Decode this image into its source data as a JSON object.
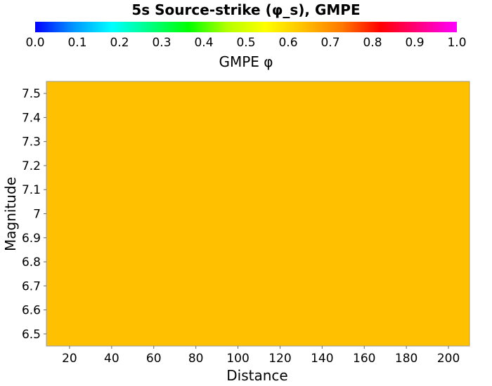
{
  "chart_data": {
    "type": "heatmap",
    "title": "5s Source-strike (φ_s), GMPE",
    "colorbar": {
      "label": "GMPE φ",
      "range": [
        0.0,
        1.0
      ],
      "ticks": [
        "0.0",
        "0.1",
        "0.2",
        "0.3",
        "0.4",
        "0.5",
        "0.6",
        "0.7",
        "0.8",
        "0.9",
        "1.0"
      ],
      "colors": [
        "#0000ff",
        "#0096ff",
        "#00ffff",
        "#00ff80",
        "#00ff00",
        "#b4ff00",
        "#ffff00",
        "#ffc000",
        "#ff7800",
        "#ff0000",
        "#ff0080",
        "#ff00ff"
      ]
    },
    "xlabel": "Distance",
    "ylabel": "Magnitude",
    "xlim": [
      9,
      210
    ],
    "ylim": [
      6.45,
      7.55
    ],
    "xticks": [
      "20",
      "40",
      "60",
      "80",
      "100",
      "120",
      "140",
      "160",
      "180",
      "200"
    ],
    "yticks": [
      "6.5",
      "6.6",
      "6.7",
      "6.8",
      "6.9",
      "7",
      "7.1",
      "7.2",
      "7.3",
      "7.4",
      "7.5"
    ],
    "cells": [
      {
        "x": [
          9,
          210
        ],
        "y": [
          6.45,
          7.55
        ],
        "value": 0.6,
        "color": "#ffc000"
      }
    ]
  }
}
